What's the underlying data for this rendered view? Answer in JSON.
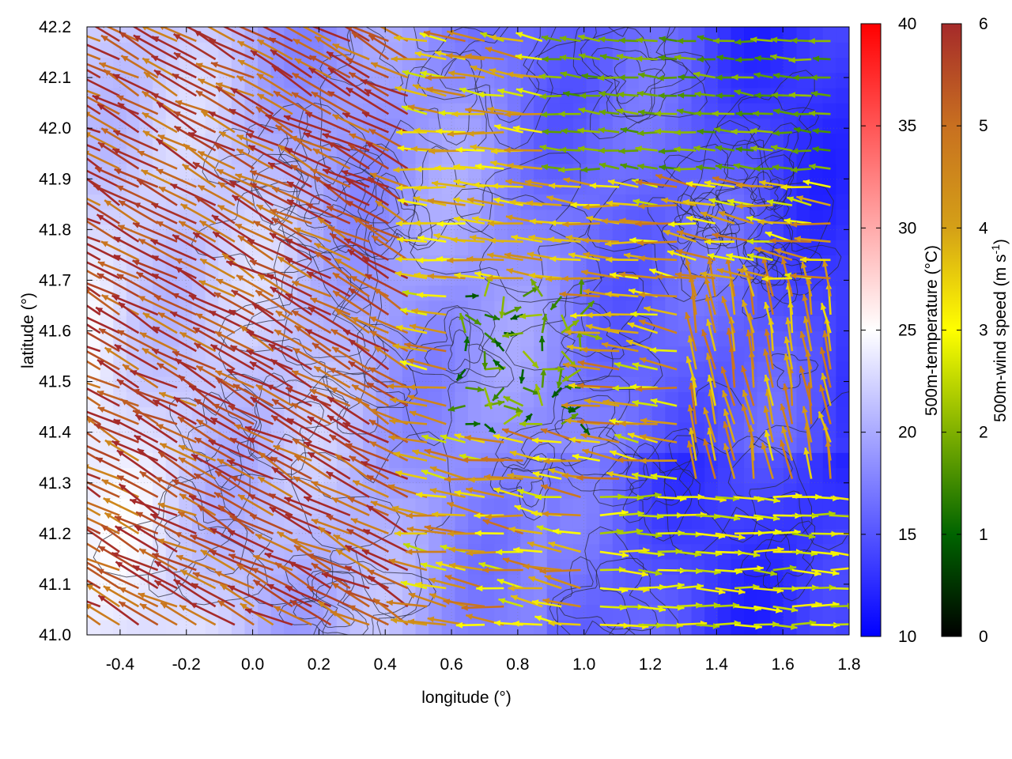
{
  "chart_data": {
    "type": "heatmap",
    "title": "",
    "xlabel": "longitude (°)",
    "ylabel": "latitude (°)",
    "xlim": [
      -0.5,
      1.8
    ],
    "ylim": [
      41.0,
      42.2
    ],
    "xticks": [
      -0.4,
      -0.2,
      0.0,
      0.2,
      0.4,
      0.6,
      0.8,
      1.0,
      1.2,
      1.4,
      1.6,
      1.8
    ],
    "xtick_labels": [
      "-0.4",
      "-0.2",
      "0.0",
      "0.2",
      "0.4",
      "0.6",
      "0.8",
      "1.0",
      "1.2",
      "1.4",
      "1.6",
      "1.8"
    ],
    "yticks": [
      41.0,
      41.1,
      41.2,
      41.3,
      41.4,
      41.5,
      41.6,
      41.7,
      41.8,
      41.9,
      42.0,
      42.1,
      42.2
    ],
    "ytick_labels": [
      "41.0",
      "41.1",
      "41.2",
      "41.3",
      "41.4",
      "41.5",
      "41.6",
      "41.7",
      "41.8",
      "41.9",
      "42.0",
      "42.1",
      "42.2"
    ],
    "grid": true,
    "temperature_colorbar": {
      "label": "500m-temperature (°C)",
      "range": [
        10,
        40
      ],
      "ticks": [
        10,
        15,
        20,
        25,
        30,
        35,
        40
      ],
      "tick_labels": [
        "10",
        "15",
        "20",
        "25",
        "30",
        "35",
        "40"
      ],
      "colors": [
        "#0000ff",
        "#ffffff",
        "#ff0000"
      ]
    },
    "wind_colorbar": {
      "label": "500m-wind speed (m s",
      "label_superscript": "-1",
      "label_close": ")",
      "range": [
        0,
        6
      ],
      "ticks": [
        0,
        1,
        2,
        3,
        4,
        5,
        6
      ],
      "tick_labels": [
        "0",
        "1",
        "2",
        "3",
        "4",
        "5",
        "6"
      ],
      "colors": [
        "#000000",
        "#006400",
        "#7fb000",
        "#ffff00",
        "#d4a017",
        "#c87020",
        "#a52a2a"
      ]
    },
    "temperature_field_description": [
      {
        "region": "west",
        "temp_c": 23
      },
      {
        "region": "center",
        "temp_c": 19
      },
      {
        "region": "east",
        "temp_c": 14
      },
      {
        "region": "northeast",
        "temp_c": 11
      }
    ],
    "wind_regimes": [
      {
        "lon_range": [
          -0.5,
          0.5
        ],
        "lat_range": [
          41.0,
          42.2
        ],
        "direction": "northwestward",
        "speed": 6
      },
      {
        "lon_range": [
          0.5,
          1.2
        ],
        "lat_range": [
          41.7,
          42.0
        ],
        "direction": "westward",
        "speed": 4
      },
      {
        "lon_range": [
          0.6,
          1.0
        ],
        "lat_range": [
          41.4,
          41.7
        ],
        "direction": "variable",
        "speed": 1.5
      },
      {
        "lon_range": [
          1.0,
          1.8
        ],
        "lat_range": [
          41.0,
          41.3
        ],
        "direction": "eastward",
        "speed": 3
      },
      {
        "lon_range": [
          1.3,
          1.8
        ],
        "lat_range": [
          41.3,
          41.7
        ],
        "direction": "northward",
        "speed": 4.5
      },
      {
        "lon_range": [
          0.9,
          1.8
        ],
        "lat_range": [
          41.9,
          42.2
        ],
        "direction": "westward",
        "speed": 2
      }
    ]
  }
}
